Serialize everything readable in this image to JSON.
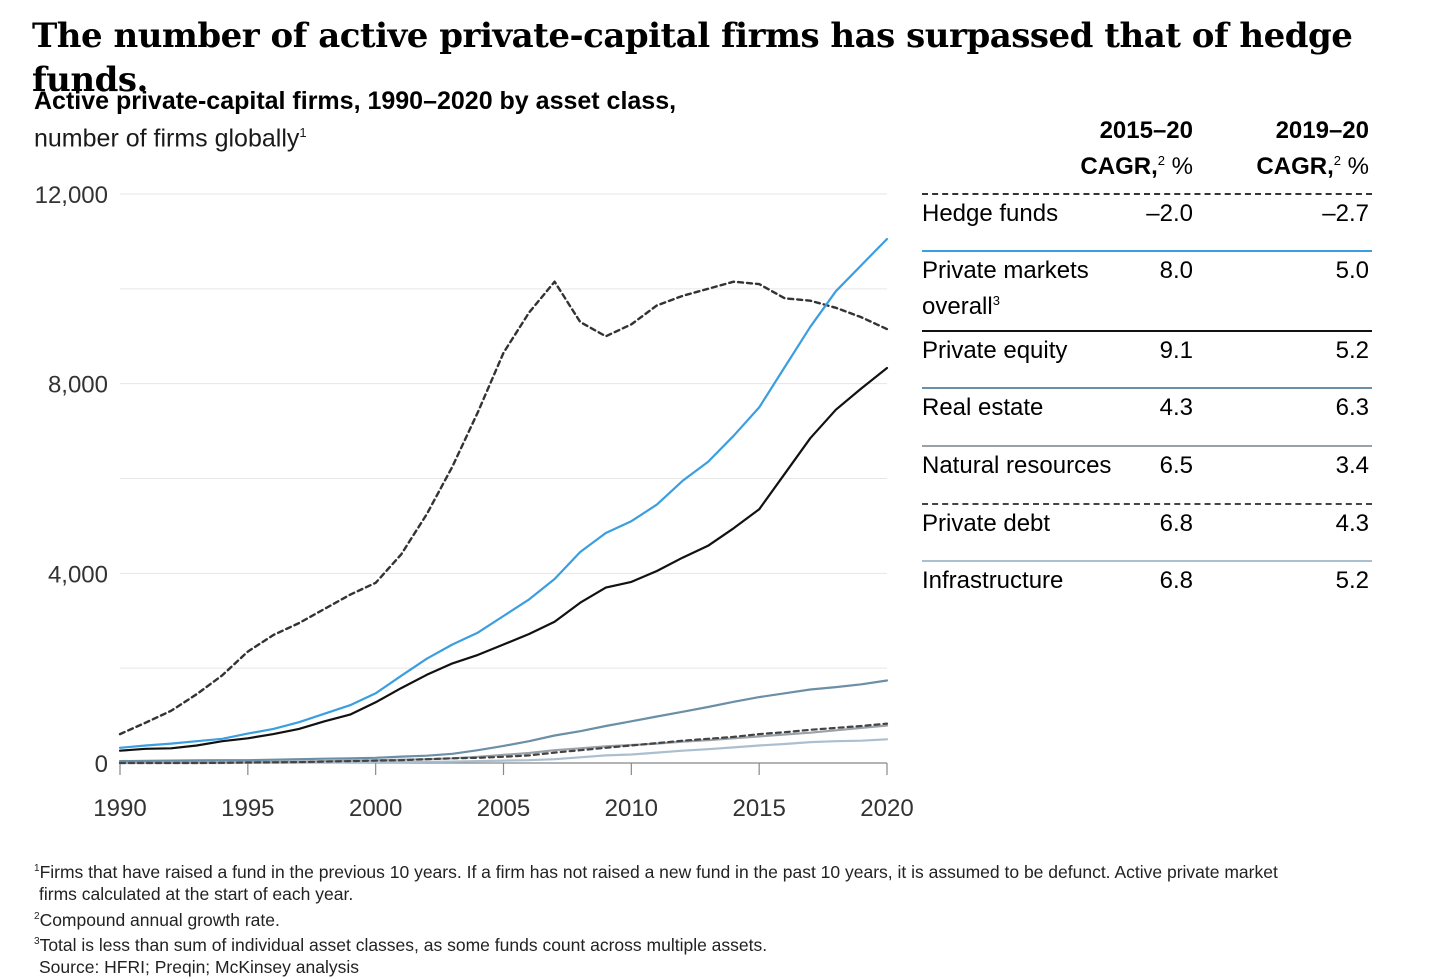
{
  "headline": "The number of active private-capital firms has surpassed that of hedge funds.",
  "chart_title": "Active private-capital firms, 1990–2020 by asset class,",
  "chart_subtitle": "number of firms globally",
  "chart_subtitle_note": "1",
  "table": {
    "col1_line1": "2015–20",
    "col1_line2": "CAGR,",
    "col2_line1": "2019–20",
    "col2_line2": "CAGR,",
    "cagr_note": "2",
    "cagr_unit": " %",
    "rows": [
      {
        "label": "Hedge funds",
        "v1": "–2.0",
        "v2": "–2.7"
      },
      {
        "label": "Private markets",
        "label2": "overall",
        "note": "3",
        "v1": "8.0",
        "v2": "5.0"
      },
      {
        "label": "Private equity",
        "v1": "9.1",
        "v2": "5.2"
      },
      {
        "label": "Real estate",
        "v1": "4.3",
        "v2": "6.3"
      },
      {
        "label": "Natural resources",
        "v1": "6.5",
        "v2": "3.4"
      },
      {
        "label": "Private debt",
        "v1": "6.8",
        "v2": "4.3"
      },
      {
        "label": "Infrastructure",
        "v1": "6.8",
        "v2": "5.2"
      }
    ]
  },
  "footnotes": {
    "f1_mark": "1",
    "f1_line1": "Firms that have raised a fund in the previous 10 years. If a firm has not raised a new fund in the past 10 years, it is assumed to be defunct. Active private market",
    "f1_line2": "firms calculated at the start of each year.",
    "f2_mark": "2",
    "f2": "Compound annual growth rate.",
    "f3_mark": "3",
    "f3": "Total is less than sum of individual asset classes, as some funds count across multiple assets.",
    "source": "Source: HFRI; Preqin; McKinsey analysis"
  },
  "colors": {
    "hedge_funds": "#333333",
    "private_markets_overall": "#3a9ee0",
    "private_equity": "#111111",
    "real_estate": "#6b8fa6",
    "natural_resources": "#9aa2a8",
    "private_debt": "#444444",
    "infrastructure": "#aabfcf",
    "grid": "#e6e6e6",
    "axis": "#888888"
  },
  "chart_data": {
    "type": "line",
    "x": [
      1990,
      1991,
      1992,
      1993,
      1994,
      1995,
      1996,
      1997,
      1998,
      1999,
      2000,
      2001,
      2002,
      2003,
      2004,
      2005,
      2006,
      2007,
      2008,
      2009,
      2010,
      2011,
      2012,
      2013,
      2014,
      2015,
      2016,
      2017,
      2018,
      2019,
      2020
    ],
    "xticks": [
      "1990",
      "1995",
      "2000",
      "2005",
      "2010",
      "2015",
      "2020"
    ],
    "yticks": [
      "0",
      "4,000",
      "8,000",
      "12,000"
    ],
    "xlim": [
      1990,
      2020
    ],
    "ylim": [
      0,
      12000
    ],
    "grid": true,
    "series": [
      {
        "name": "Hedge funds",
        "style": "dashed",
        "color_key": "hedge_funds",
        "values": [
          610,
          850,
          1100,
          1450,
          1850,
          2350,
          2700,
          2950,
          3250,
          3550,
          3800,
          4400,
          5250,
          6250,
          7400,
          8650,
          9500,
          10150,
          9300,
          9000,
          9250,
          9650,
          9850,
          10000,
          10150,
          10100,
          9800,
          9750,
          9600,
          9400,
          9150
        ]
      },
      {
        "name": "Private markets overall",
        "style": "solid",
        "color_key": "private_markets_overall",
        "values": [
          320,
          370,
          410,
          460,
          510,
          620,
          720,
          860,
          1040,
          1220,
          1470,
          1840,
          2200,
          2500,
          2750,
          3100,
          3450,
          3880,
          4450,
          4850,
          5100,
          5450,
          5950,
          6350,
          6900,
          7500,
          8350,
          9200,
          9950,
          10500,
          11050
        ]
      },
      {
        "name": "Private equity",
        "style": "solid",
        "color_key": "private_equity",
        "values": [
          260,
          300,
          310,
          370,
          460,
          520,
          610,
          720,
          880,
          1020,
          1280,
          1580,
          1860,
          2100,
          2280,
          2500,
          2720,
          2980,
          3380,
          3700,
          3820,
          4050,
          4330,
          4580,
          4950,
          5350,
          6100,
          6850,
          7450,
          7900,
          8330
        ]
      },
      {
        "name": "Real estate",
        "style": "solid",
        "color_key": "real_estate",
        "values": [
          40,
          45,
          50,
          55,
          60,
          60,
          70,
          80,
          90,
          100,
          110,
          135,
          155,
          195,
          270,
          360,
          460,
          580,
          670,
          780,
          880,
          980,
          1080,
          1180,
          1290,
          1390,
          1470,
          1550,
          1600,
          1660,
          1740
        ]
      },
      {
        "name": "Natural resources",
        "style": "solid",
        "color_key": "natural_resources",
        "values": [
          0,
          5,
          5,
          10,
          15,
          20,
          25,
          30,
          40,
          50,
          60,
          70,
          80,
          100,
          130,
          170,
          210,
          270,
          310,
          350,
          380,
          410,
          450,
          480,
          520,
          560,
          600,
          640,
          690,
          740,
          790
        ]
      },
      {
        "name": "Private debt",
        "style": "dashed",
        "color_key": "private_debt",
        "values": [
          0,
          0,
          0,
          0,
          5,
          10,
          15,
          20,
          30,
          40,
          50,
          60,
          80,
          100,
          110,
          130,
          160,
          220,
          270,
          320,
          370,
          420,
          470,
          510,
          550,
          610,
          650,
          700,
          740,
          780,
          830
        ]
      },
      {
        "name": "Infrastructure",
        "style": "solid",
        "color_key": "infrastructure",
        "values": [
          0,
          0,
          0,
          0,
          0,
          5,
          5,
          10,
          10,
          15,
          20,
          20,
          25,
          30,
          40,
          50,
          60,
          80,
          120,
          160,
          180,
          220,
          260,
          290,
          330,
          370,
          400,
          440,
          460,
          470,
          500
        ]
      }
    ]
  }
}
